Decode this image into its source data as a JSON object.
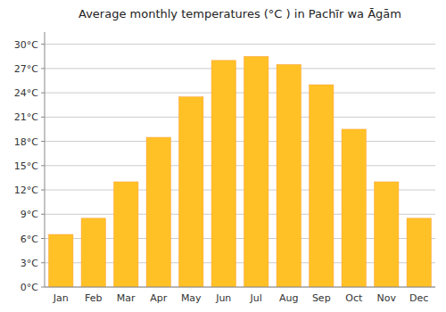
{
  "chart_data": {
    "type": "bar",
    "title": "Average monthly temperatures (°C ) in Pachīr wa Āgām",
    "categories": [
      "Jan",
      "Feb",
      "Mar",
      "Apr",
      "May",
      "Jun",
      "Jul",
      "Aug",
      "Sep",
      "Oct",
      "Nov",
      "Dec"
    ],
    "values": [
      6.5,
      8.5,
      13.0,
      18.5,
      23.5,
      28.0,
      28.5,
      27.5,
      25.0,
      19.5,
      13.0,
      8.5
    ],
    "color": "#FFC125",
    "ylim": [
      0,
      31.5
    ],
    "yticks": [
      {
        "value": 0,
        "label": "0°C"
      },
      {
        "value": 3,
        "label": "3°C"
      },
      {
        "value": 6,
        "label": "6°C"
      },
      {
        "value": 9,
        "label": "9°C"
      },
      {
        "value": 12,
        "label": "12°C"
      },
      {
        "value": 15,
        "label": "15°C"
      },
      {
        "value": 18,
        "label": "18°C"
      },
      {
        "value": 21,
        "label": "21°C"
      },
      {
        "value": 24,
        "label": "24°C"
      },
      {
        "value": 27,
        "label": "27°C"
      },
      {
        "value": 30,
        "label": "30°C"
      }
    ],
    "grid": true
  }
}
